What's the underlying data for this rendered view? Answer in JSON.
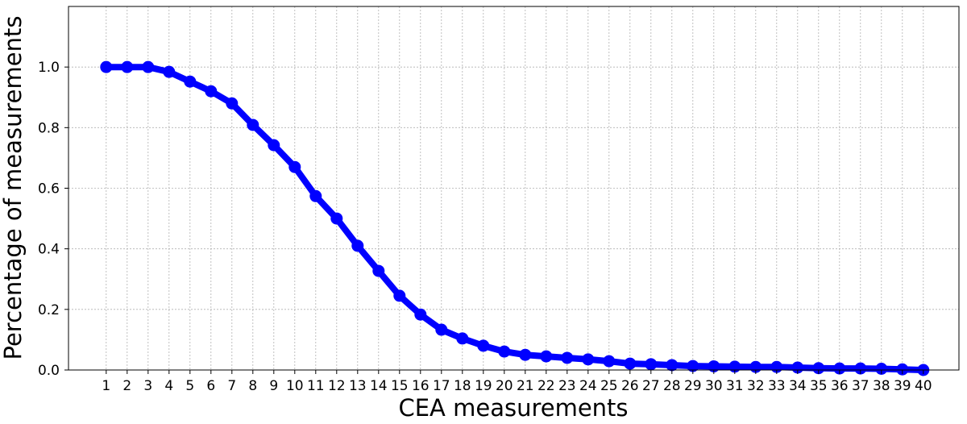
{
  "chart_data": {
    "type": "line",
    "title": "",
    "xlabel": "CEA measurements",
    "ylabel": "Percentage of measurements",
    "xlim": [
      -0.8,
      41.7
    ],
    "ylim": [
      0,
      1.2
    ],
    "grid": true,
    "x_ticks": [
      1,
      2,
      3,
      4,
      5,
      6,
      7,
      8,
      9,
      10,
      11,
      12,
      13,
      14,
      15,
      16,
      17,
      18,
      19,
      20,
      21,
      22,
      23,
      24,
      25,
      26,
      27,
      28,
      29,
      30,
      31,
      32,
      33,
      34,
      35,
      36,
      37,
      38,
      39,
      40
    ],
    "y_ticks": [
      0.0,
      0.2,
      0.4,
      0.6,
      0.8,
      1.0
    ],
    "y_tick_labels": [
      "0.0",
      "0.2",
      "0.4",
      "0.6",
      "0.8",
      "1.0"
    ],
    "series_color": "#0000ff",
    "marker": "circle",
    "x": [
      1,
      2,
      3,
      4,
      5,
      6,
      7,
      8,
      9,
      10,
      11,
      12,
      13,
      14,
      15,
      16,
      17,
      18,
      19,
      20,
      21,
      22,
      23,
      24,
      25,
      26,
      27,
      28,
      29,
      30,
      31,
      32,
      33,
      34,
      35,
      36,
      37,
      38,
      39,
      40
    ],
    "values": [
      1.0,
      1.0,
      1.0,
      0.984,
      0.952,
      0.92,
      0.88,
      0.809,
      0.742,
      0.67,
      0.574,
      0.5,
      0.41,
      0.327,
      0.245,
      0.183,
      0.133,
      0.104,
      0.08,
      0.061,
      0.05,
      0.045,
      0.04,
      0.035,
      0.029,
      0.021,
      0.019,
      0.016,
      0.013,
      0.012,
      0.011,
      0.01,
      0.01,
      0.008,
      0.006,
      0.005,
      0.005,
      0.004,
      0.002,
      0.0
    ]
  }
}
